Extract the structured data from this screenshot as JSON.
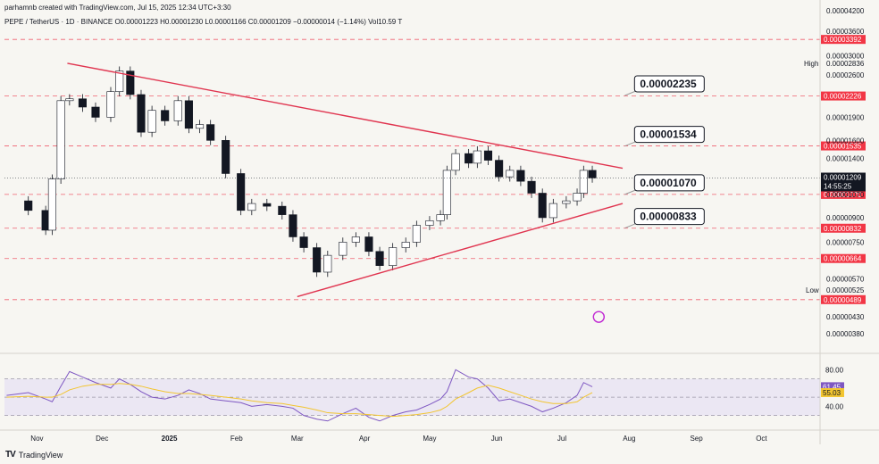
{
  "header": {
    "credit": "parhamnb created with TradingView.com, Jul 15, 2025 12:34 UTC+3:30",
    "symbol_line": "PEPE / TetherUS · 1D · BINANCE  O0.00001223  H0.00001230  L0.00001166  C0.00001209  −0.00000014 (−1.14%)  Vol10.59 T"
  },
  "footer": {
    "logo": "TV",
    "brand": "TradingView"
  },
  "colors": {
    "background": "#f7f6f2",
    "candle": "#131722",
    "trendline": "#e0344f",
    "level_line": "#f0606f",
    "level_badge": "#f23645",
    "price_badge": "#131722",
    "rsi_line": "#7e57c2",
    "rsi_ma": "#f2c530",
    "rsi_band": "#ebe7f3"
  },
  "chart_data": [
    {
      "type": "candlestick",
      "title": "PEPE / TetherUS · 1D · BINANCE",
      "x_labels": [
        "Nov",
        "Dec",
        "2025",
        "Feb",
        "Mar",
        "Apr",
        "May",
        "Jun",
        "Jul",
        "Aug",
        "Sep",
        "Oct"
      ],
      "y_tick_labels": [
        "0.00004200",
        "0.00003600",
        "0.00003000",
        "0.00002600",
        "0.00001900",
        "0.00001600",
        "0.00001400",
        "0.00001070",
        "0.00000900",
        "0.00000750",
        "0.00000570",
        "0.00000430",
        "0.00000380"
      ],
      "ylim": [
        3.3e-06,
        4.4e-05
      ],
      "y_scale": "log",
      "grid": false,
      "close_series": [
        {
          "date": "2024-10-18",
          "close": 1.02e-05
        },
        {
          "date": "2024-10-28",
          "close": 9.5e-06
        },
        {
          "date": "2024-11-05",
          "close": 8.2e-06
        },
        {
          "date": "2024-11-08",
          "close": 1.2e-05
        },
        {
          "date": "2024-11-12",
          "close": 2.15e-05
        },
        {
          "date": "2024-11-16",
          "close": 2.18e-05
        },
        {
          "date": "2024-11-22",
          "close": 2.05e-05
        },
        {
          "date": "2024-11-28",
          "close": 1.9e-05
        },
        {
          "date": "2024-12-05",
          "close": 2.3e-05
        },
        {
          "date": "2024-12-09",
          "close": 2.68e-05
        },
        {
          "date": "2024-12-14",
          "close": 2.25e-05
        },
        {
          "date": "2024-12-19",
          "close": 1.7e-05
        },
        {
          "date": "2024-12-24",
          "close": 2e-05
        },
        {
          "date": "2024-12-30",
          "close": 1.85e-05
        },
        {
          "date": "2025-01-05",
          "close": 2.15e-05
        },
        {
          "date": "2025-01-10",
          "close": 1.75e-05
        },
        {
          "date": "2025-01-15",
          "close": 1.8e-05
        },
        {
          "date": "2025-01-20",
          "close": 1.6e-05
        },
        {
          "date": "2025-01-27",
          "close": 1.25e-05
        },
        {
          "date": "2025-02-03",
          "close": 9.5e-06
        },
        {
          "date": "2025-02-08",
          "close": 1e-05
        },
        {
          "date": "2025-02-15",
          "close": 9.8e-06
        },
        {
          "date": "2025-02-22",
          "close": 9.2e-06
        },
        {
          "date": "2025-02-27",
          "close": 7.8e-06
        },
        {
          "date": "2025-03-04",
          "close": 7.2e-06
        },
        {
          "date": "2025-03-10",
          "close": 6e-06
        },
        {
          "date": "2025-03-15",
          "close": 6.8e-06
        },
        {
          "date": "2025-03-22",
          "close": 7.5e-06
        },
        {
          "date": "2025-03-28",
          "close": 7.8e-06
        },
        {
          "date": "2025-04-03",
          "close": 7e-06
        },
        {
          "date": "2025-04-08",
          "close": 6.3e-06
        },
        {
          "date": "2025-04-14",
          "close": 7.2e-06
        },
        {
          "date": "2025-04-20",
          "close": 7.5e-06
        },
        {
          "date": "2025-04-25",
          "close": 8.5e-06
        },
        {
          "date": "2025-05-01",
          "close": 8.8e-06
        },
        {
          "date": "2025-05-06",
          "close": 9.2e-06
        },
        {
          "date": "2025-05-09",
          "close": 1.28e-05
        },
        {
          "date": "2025-05-13",
          "close": 1.45e-05
        },
        {
          "date": "2025-05-19",
          "close": 1.35e-05
        },
        {
          "date": "2025-05-23",
          "close": 1.48e-05
        },
        {
          "date": "2025-05-28",
          "close": 1.38e-05
        },
        {
          "date": "2025-06-02",
          "close": 1.22e-05
        },
        {
          "date": "2025-06-07",
          "close": 1.28e-05
        },
        {
          "date": "2025-06-12",
          "close": 1.18e-05
        },
        {
          "date": "2025-06-17",
          "close": 1.08e-05
        },
        {
          "date": "2025-06-22",
          "close": 9e-06
        },
        {
          "date": "2025-06-27",
          "close": 1e-05
        },
        {
          "date": "2025-07-03",
          "close": 1.02e-05
        },
        {
          "date": "2025-07-08",
          "close": 1.08e-05
        },
        {
          "date": "2025-07-11",
          "close": 1.28e-05
        },
        {
          "date": "2025-07-15",
          "close": 1.21e-05
        }
      ],
      "trendlines": [
        {
          "name": "upper",
          "start": {
            "date": "2024-11-15",
            "price": 2.84e-05
          },
          "end": {
            "date": "2025-07-29",
            "price": 1.3e-05
          }
        },
        {
          "name": "lower",
          "start": {
            "date": "2025-03-01",
            "price": 5e-06
          },
          "end": {
            "date": "2025-07-29",
            "price": 1e-05
          }
        }
      ],
      "levels": [
        {
          "price": 3.392e-05,
          "label": "0.00003392"
        },
        {
          "price": 2.226e-05,
          "label": "0.00002226"
        },
        {
          "price": 1.535e-05,
          "label": "0.00001535"
        },
        {
          "price": 1.07e-05,
          "label": "0.00001070"
        },
        {
          "price": 8.32e-06,
          "label": "0.00000832"
        },
        {
          "price": 6.64e-06,
          "label": "0.00000664"
        },
        {
          "price": 4.89e-06,
          "label": "0.00000489"
        }
      ],
      "callouts": [
        {
          "label": "0.00002235",
          "price": 2.235e-05
        },
        {
          "label": "0.00001534",
          "price": 1.534e-05
        },
        {
          "label": "0.00001070",
          "price": 1.07e-05
        },
        {
          "label": "0.00000833",
          "price": 8.33e-06
        }
      ],
      "high_marker": {
        "label": "High",
        "value": "0.00002836"
      },
      "low_marker": {
        "label": "Low",
        "value": "0.00000525"
      },
      "current_price": {
        "value": "0.00001209",
        "countdown": "14:55:25"
      }
    },
    {
      "type": "line",
      "title": "RSI",
      "y_tick_labels": [
        "80.00",
        "40.00"
      ],
      "ylim": [
        15,
        95
      ],
      "bands": [
        70,
        30
      ],
      "mid": 50,
      "series": [
        {
          "name": "RSI",
          "values": [
            52,
            55,
            48,
            45,
            62,
            78,
            72,
            66,
            60,
            70,
            64,
            56,
            50,
            48,
            52,
            58,
            54,
            48,
            46,
            44,
            40,
            42,
            40,
            38,
            30,
            26,
            24,
            32,
            38,
            28,
            24,
            30,
            34,
            36,
            42,
            48,
            56,
            80,
            72,
            70,
            60,
            46,
            48,
            44,
            40,
            34,
            38,
            44,
            52,
            66,
            61.45
          ]
        },
        {
          "name": "MA",
          "values": [
            50,
            51,
            50,
            50,
            53,
            58,
            62,
            64,
            64,
            65,
            64,
            62,
            59,
            56,
            54,
            54,
            53,
            52,
            50,
            48,
            46,
            44,
            43,
            41,
            39,
            36,
            33,
            32,
            32,
            31,
            30,
            29,
            30,
            31,
            33,
            36,
            40,
            48,
            55,
            60,
            63,
            60,
            56,
            52,
            48,
            45,
            43,
            43,
            45,
            50,
            55.03
          ]
        }
      ],
      "last_values": {
        "rsi": "61.45",
        "ma": "55.03"
      }
    }
  ]
}
